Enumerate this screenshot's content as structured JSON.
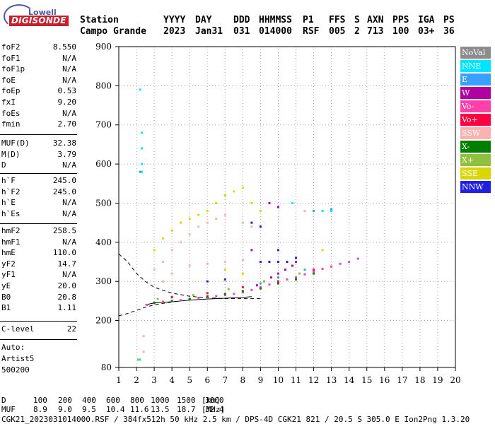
{
  "logo": {
    "top": "Lowell",
    "main": "DIGISONDE"
  },
  "header": {
    "station_label": "Station",
    "station_name": "Campo Grande",
    "columns": [
      {
        "name": "YYYY",
        "value": "2023"
      },
      {
        "name": "DAY",
        "value": "Jan31"
      },
      {
        "name": "DDD",
        "value": "031"
      },
      {
        "name": "HHMMSS",
        "value": "014000"
      },
      {
        "name": "P1",
        "value": "RSF"
      },
      {
        "name": "FFS",
        "value": "005"
      },
      {
        "name": "S",
        "value": "2"
      },
      {
        "name": "AXN",
        "value": "713"
      },
      {
        "name": "PPS",
        "value": "100"
      },
      {
        "name": "IGA",
        "value": "03+"
      },
      {
        "name": "PS",
        "value": "36"
      }
    ]
  },
  "params": {
    "group1": [
      {
        "label": "foF2",
        "value": "8.550"
      },
      {
        "label": "foF1",
        "value": "N/A"
      },
      {
        "label": "foF1p",
        "value": "N/A"
      },
      {
        "label": "foE",
        "value": "N/A"
      },
      {
        "label": "foEp",
        "value": "0.53"
      },
      {
        "label": "fxI",
        "value": "9.20"
      },
      {
        "label": "foEs",
        "value": "N/A"
      },
      {
        "label": "fmin",
        "value": "2.70"
      }
    ],
    "group2": [
      {
        "label": "MUF(D)",
        "value": "32.38"
      },
      {
        "label": "M(D)",
        "value": "3.79"
      },
      {
        "label": "D",
        "value": "N/A"
      }
    ],
    "group3": [
      {
        "label": "h`F",
        "value": "245.0"
      },
      {
        "label": "h`F2",
        "value": "245.0"
      },
      {
        "label": "h`E",
        "value": "N/A"
      },
      {
        "label": "h`Es",
        "value": "N/A"
      }
    ],
    "group4": [
      {
        "label": "hmF2",
        "value": "258.5"
      },
      {
        "label": "hmF1",
        "value": "N/A"
      },
      {
        "label": "hmE",
        "value": "110.0"
      },
      {
        "label": "yF2",
        "value": "14.7"
      },
      {
        "label": "yF1",
        "value": "N/A"
      },
      {
        "label": "yE",
        "value": "20.0"
      },
      {
        "label": "B0",
        "value": "20.8"
      },
      {
        "label": "B1",
        "value": "1.11"
      }
    ],
    "group5": [
      {
        "label": "C-level",
        "value": "22"
      }
    ],
    "autoscale": [
      "Auto:",
      "Artist5",
      "500200"
    ]
  },
  "legend": [
    {
      "label": "NoVal",
      "color": "#8c8c8c"
    },
    {
      "label": "NNE",
      "color": "#00e5ff"
    },
    {
      "label": "E",
      "color": "#3aa0ff"
    },
    {
      "label": "W",
      "color": "#b000a0"
    },
    {
      "label": "Vo-",
      "color": "#ff40a8"
    },
    {
      "label": "Vo+",
      "color": "#ff0040"
    },
    {
      "label": "SSW",
      "color": "#ffb0b0"
    },
    {
      "label": "X-",
      "color": "#008000"
    },
    {
      "label": "X+",
      "color": "#90c040"
    },
    {
      "label": "SSE",
      "color": "#d8d800"
    },
    {
      "label": "NNW",
      "color": "#2020e0"
    }
  ],
  "chart_data": {
    "type": "scatter",
    "xlim": [
      1,
      20
    ],
    "ylim": [
      80,
      900
    ],
    "x_ticks": [
      1,
      2,
      3,
      4,
      5,
      6,
      7,
      8,
      9,
      10,
      11,
      12,
      13,
      14,
      15,
      16,
      17,
      18,
      19,
      20
    ],
    "y_ticks": [
      80,
      200,
      300,
      400,
      500,
      600,
      700,
      800,
      900
    ],
    "grid": true,
    "series": [
      {
        "name": "Vo-",
        "color": "#ff40a8",
        "points": [
          [
            2.6,
            240
          ],
          [
            3,
            245
          ],
          [
            3.5,
            248
          ],
          [
            4,
            250
          ],
          [
            4.5,
            252
          ],
          [
            5,
            255
          ],
          [
            5.5,
            258
          ],
          [
            6,
            260
          ],
          [
            6.5,
            262
          ],
          [
            7,
            265
          ],
          [
            7.5,
            268
          ],
          [
            8,
            272
          ],
          [
            8.5,
            278
          ],
          [
            9,
            285
          ],
          [
            9.5,
            292
          ],
          [
            10,
            300
          ],
          [
            10.5,
            305
          ],
          [
            11,
            310
          ],
          [
            11.5,
            318
          ],
          [
            12,
            325
          ],
          [
            12.5,
            332
          ],
          [
            13,
            338
          ],
          [
            13.5,
            345
          ],
          [
            14,
            350
          ],
          [
            14.5,
            358
          ]
        ]
      },
      {
        "name": "W",
        "color": "#b000a0",
        "points": [
          [
            8.8,
            290
          ],
          [
            9.2,
            300
          ],
          [
            9.6,
            310
          ],
          [
            10,
            320
          ],
          [
            10.4,
            330
          ],
          [
            10.8,
            340
          ],
          [
            11,
            350
          ],
          [
            9.5,
            500
          ],
          [
            10,
            490
          ],
          [
            8.5,
            380
          ]
        ]
      },
      {
        "name": "SSW",
        "color": "#ffb0b0",
        "points": [
          [
            3,
            330
          ],
          [
            3.5,
            350
          ],
          [
            4,
            380
          ],
          [
            4.5,
            400
          ],
          [
            5,
            420
          ],
          [
            5.5,
            440
          ],
          [
            6,
            450
          ],
          [
            6.5,
            460
          ],
          [
            7,
            470
          ],
          [
            8,
            450
          ],
          [
            8.5,
            440
          ],
          [
            3.5,
            300
          ],
          [
            4,
            320
          ],
          [
            5,
            340
          ],
          [
            6,
            345
          ],
          [
            7,
            350
          ],
          [
            8,
            355
          ],
          [
            11.5,
            480
          ],
          [
            12,
            480
          ],
          [
            2.4,
            160
          ],
          [
            2.4,
            120
          ]
        ]
      },
      {
        "name": "SSE",
        "color": "#d8d800",
        "points": [
          [
            3,
            380
          ],
          [
            3.5,
            410
          ],
          [
            4,
            430
          ],
          [
            4.5,
            450
          ],
          [
            5,
            460
          ],
          [
            5.5,
            470
          ],
          [
            6,
            480
          ],
          [
            6.5,
            500
          ],
          [
            7,
            520
          ],
          [
            7.5,
            530
          ],
          [
            8,
            540
          ],
          [
            8.5,
            500
          ],
          [
            9,
            480
          ],
          [
            7,
            330
          ],
          [
            8,
            320
          ],
          [
            12.5,
            380
          ]
        ]
      },
      {
        "name": "NNW",
        "color": "#2020e0",
        "points": [
          [
            9,
            350
          ],
          [
            9.5,
            350
          ],
          [
            10,
            350
          ],
          [
            10.5,
            350
          ],
          [
            11,
            360
          ],
          [
            8.5,
            450
          ],
          [
            9,
            440
          ],
          [
            10,
            380
          ],
          [
            6,
            300
          ],
          [
            7,
            305
          ]
        ]
      },
      {
        "name": "NNE",
        "color": "#00e5ff",
        "points": [
          [
            2.2,
            790
          ],
          [
            2.3,
            680
          ],
          [
            2.3,
            640
          ],
          [
            2.3,
            600
          ],
          [
            2.3,
            580
          ],
          [
            2.2,
            100
          ],
          [
            10.8,
            500
          ],
          [
            13,
            480
          ],
          [
            12.5,
            480
          ]
        ]
      },
      {
        "name": "X-",
        "color": "#008000",
        "points": [
          [
            3,
            245
          ],
          [
            4,
            250
          ],
          [
            5,
            255
          ],
          [
            6,
            262
          ],
          [
            7,
            268
          ],
          [
            8,
            275
          ],
          [
            9,
            282
          ],
          [
            10,
            295
          ],
          [
            11,
            305
          ],
          [
            12,
            320
          ]
        ]
      },
      {
        "name": "X+",
        "color": "#90c040",
        "points": [
          [
            2.1,
            100
          ],
          [
            3.2,
            255
          ],
          [
            5.2,
            265
          ],
          [
            7.2,
            280
          ],
          [
            9.2,
            300
          ],
          [
            11.2,
            320
          ]
        ]
      },
      {
        "name": "E",
        "color": "#3aa0ff",
        "points": [
          [
            2.2,
            580
          ],
          [
            9,
            295
          ],
          [
            10,
            310
          ],
          [
            11.5,
            330
          ],
          [
            12,
            480
          ],
          [
            13,
            485
          ]
        ]
      },
      {
        "name": "Vo+",
        "color": "#ff0040",
        "points": [
          [
            4,
            260
          ],
          [
            6,
            270
          ],
          [
            8,
            285
          ],
          [
            10,
            300
          ],
          [
            12,
            330
          ]
        ]
      }
    ],
    "curves": [
      {
        "name": "dashed-top",
        "style": "dashed",
        "points": [
          [
            1,
            370
          ],
          [
            1.5,
            350
          ],
          [
            2,
            320
          ],
          [
            2.5,
            300
          ],
          [
            3,
            285
          ],
          [
            3.5,
            277
          ],
          [
            4,
            270
          ],
          [
            5,
            262
          ],
          [
            6,
            258
          ],
          [
            7,
            256
          ],
          [
            8,
            256
          ],
          [
            9,
            256
          ]
        ]
      },
      {
        "name": "dashed-bottom",
        "style": "dashed",
        "points": [
          [
            1,
            212
          ],
          [
            1.5,
            218
          ],
          [
            2,
            226
          ],
          [
            2.5,
            234
          ],
          [
            3,
            240
          ],
          [
            3.5,
            244
          ],
          [
            4,
            247
          ]
        ]
      },
      {
        "name": "solid-profile",
        "style": "solid",
        "points": [
          [
            2.5,
            240
          ],
          [
            3,
            245
          ],
          [
            4,
            248
          ],
          [
            5,
            252
          ],
          [
            6,
            255
          ],
          [
            7,
            257
          ],
          [
            8,
            259
          ],
          [
            8.5,
            261
          ]
        ]
      }
    ]
  },
  "footer": {
    "d_row": {
      "label": "D",
      "values": [
        "100",
        "200",
        "400",
        "600",
        "800",
        "1000",
        "1500",
        "3000"
      ],
      "unit": "[km]"
    },
    "muf_row": {
      "label": "MUF",
      "values": [
        "8.9",
        "9.0",
        "9.5",
        "10.4",
        "11.6",
        "13.5",
        "18.7",
        "32.4"
      ],
      "unit": "[MHz]"
    },
    "info": "CGK21_2023031014000.RSF / 384fx512h 50 kHz 2.5 km / DPS-4D CGK21 821 / 20.5 S 305.0 E Ion2Png 1.3.20"
  }
}
